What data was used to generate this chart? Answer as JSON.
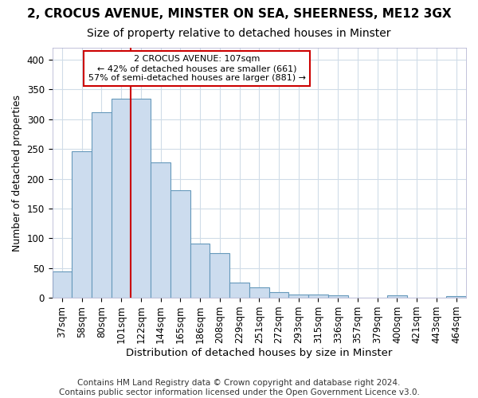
{
  "title1": "2, CROCUS AVENUE, MINSTER ON SEA, SHEERNESS, ME12 3GX",
  "title2": "Size of property relative to detached houses in Minster",
  "xlabel": "Distribution of detached houses by size in Minster",
  "ylabel": "Number of detached properties",
  "footer": "Contains HM Land Registry data © Crown copyright and database right 2024.\nContains public sector information licensed under the Open Government Licence v3.0.",
  "bin_labels": [
    "37sqm",
    "58sqm",
    "80sqm",
    "101sqm",
    "122sqm",
    "144sqm",
    "165sqm",
    "186sqm",
    "208sqm",
    "229sqm",
    "251sqm",
    "272sqm",
    "293sqm",
    "315sqm",
    "336sqm",
    "357sqm",
    "379sqm",
    "400sqm",
    "421sqm",
    "443sqm",
    "464sqm"
  ],
  "bar_values": [
    44,
    246,
    312,
    335,
    335,
    228,
    180,
    91,
    75,
    26,
    17,
    9,
    5,
    5,
    4,
    0,
    0,
    4,
    0,
    0,
    3
  ],
  "bar_color": "#ccdcee",
  "bar_edge_color": "#6699bb",
  "annotation_line1": "2 CROCUS AVENUE: 107sqm",
  "annotation_line2": "← 42% of detached houses are smaller (661)",
  "annotation_line3": "57% of semi-detached houses are larger (881) →",
  "red_line_color": "#cc0000",
  "annotation_box_color": "#ffffff",
  "annotation_box_edge": "#cc0000",
  "ylim": [
    0,
    420
  ],
  "yticks": [
    0,
    50,
    100,
    150,
    200,
    250,
    300,
    350,
    400
  ],
  "bg_color": "#ffffff",
  "axes_bg_color": "#ffffff",
  "grid_color": "#d0dce8",
  "title1_fontsize": 11,
  "title2_fontsize": 10,
  "xlabel_fontsize": 9.5,
  "ylabel_fontsize": 9,
  "footer_fontsize": 7.5,
  "tick_fontsize": 8.5,
  "red_line_x": 3.5
}
